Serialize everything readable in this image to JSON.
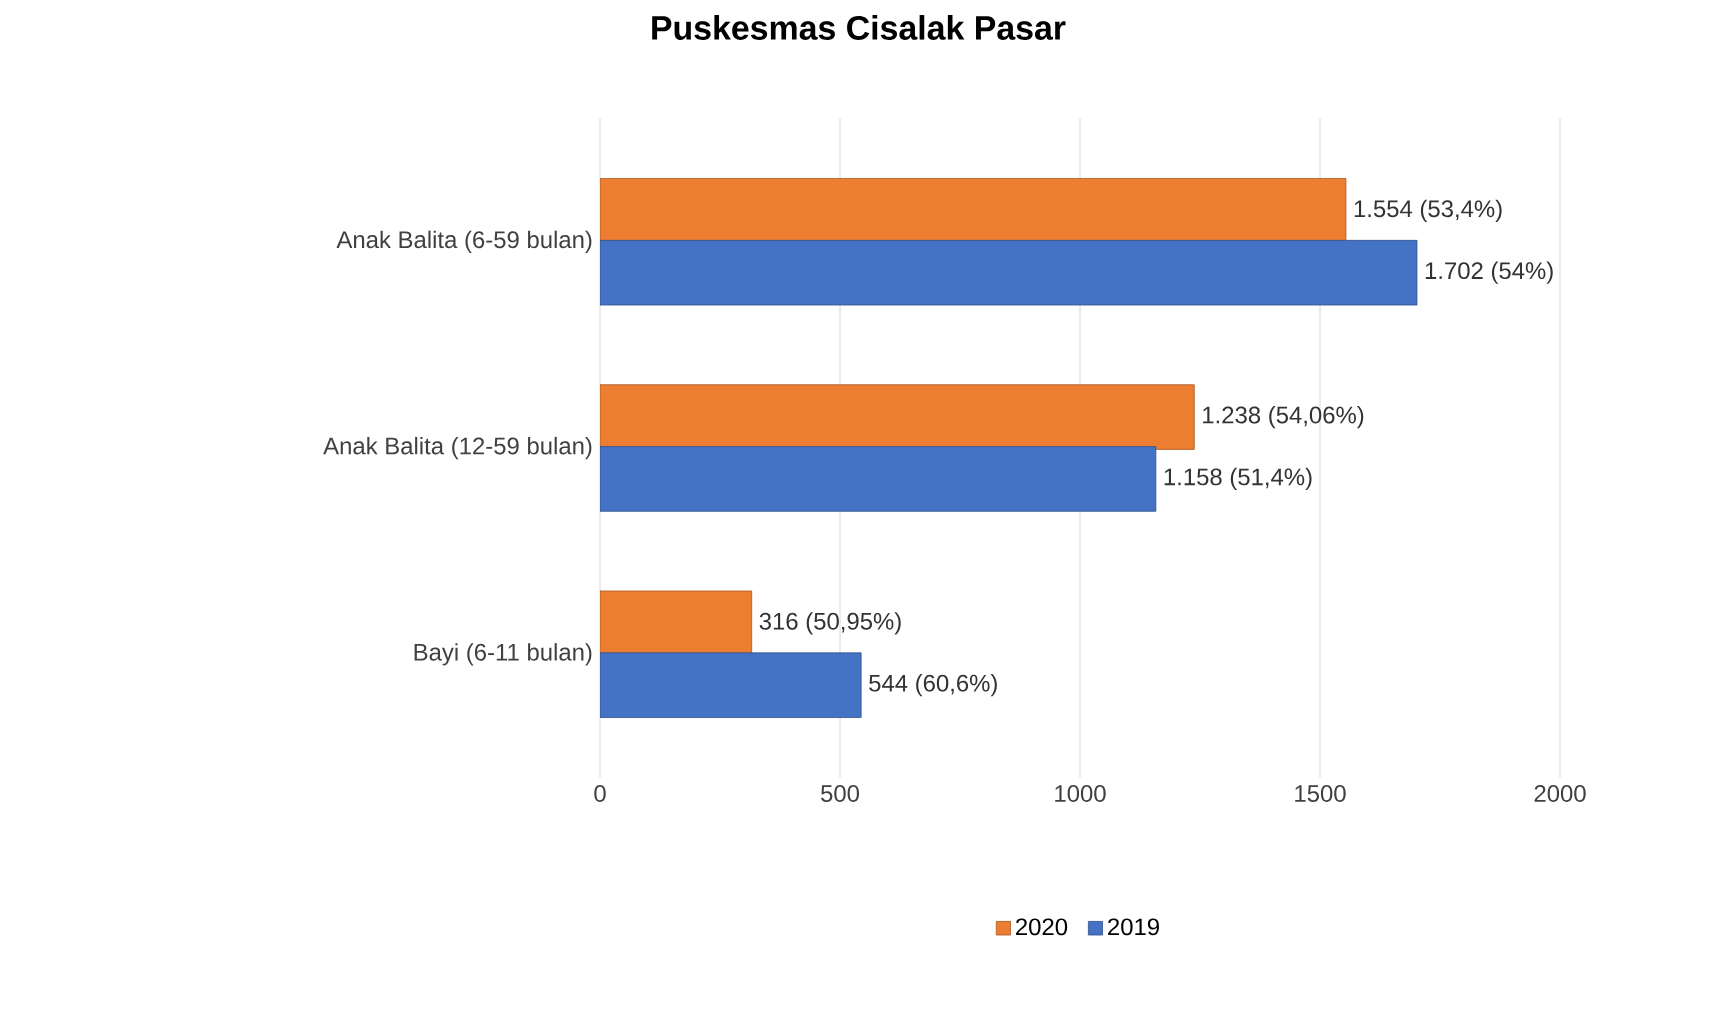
{
  "chart_data": {
    "type": "bar",
    "orientation": "horizontal",
    "title": "Puskesmas Cisalak Pasar",
    "categories": [
      "Anak Balita (6-59 bulan)",
      "Anak Balita (12-59 bulan)",
      "Bayi (6-11 bulan)"
    ],
    "series": [
      {
        "name": "2020",
        "color": "#ed7d31",
        "values": [
          1554,
          1238,
          316
        ],
        "value_labels": [
          "1.554 (53,4%)",
          "1.238 (54,06%)",
          "316 (50,95%)"
        ]
      },
      {
        "name": "2019",
        "color": "#4472c4",
        "values": [
          1702,
          1158,
          544
        ],
        "value_labels": [
          "1.702 (54%)",
          "1.158 (51,4%)",
          "544 (60,6%)"
        ]
      }
    ],
    "xlim": [
      0,
      2000
    ],
    "xticks": [
      0,
      500,
      1000,
      1500,
      2000
    ],
    "grid": "x",
    "legend": "bottom"
  }
}
